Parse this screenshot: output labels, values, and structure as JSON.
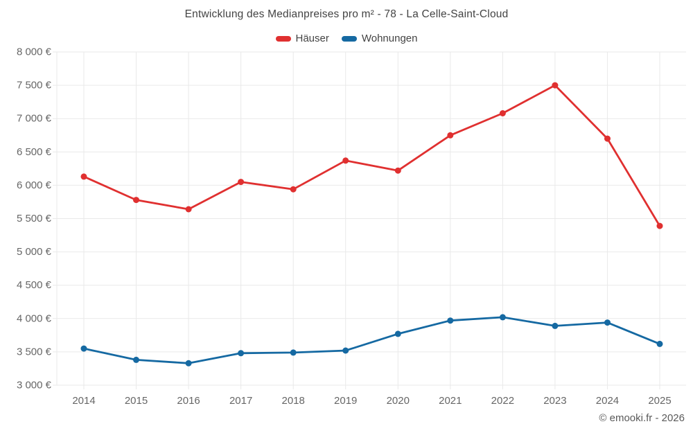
{
  "title": "Entwicklung des Medianpreises pro m² - 78 - La Celle-Saint-Cloud",
  "legend": {
    "items": [
      {
        "id": "haeuser",
        "label": "Häuser",
        "color": "#e03030"
      },
      {
        "id": "wohnungen",
        "label": "Wohnungen",
        "color": "#1569a2"
      }
    ]
  },
  "footer": {
    "credit": "© emooki.fr - 2026"
  },
  "colors": {
    "red": "#e03030",
    "blue": "#1569a2",
    "grid": "#e9e9e9",
    "axis_text": "#666666",
    "title_text": "#434343",
    "footer_text": "#595959"
  },
  "chart_data": {
    "type": "line",
    "title": "Entwicklung des Medianpreises pro m² - 78 - La Celle-Saint-Cloud",
    "xlabel": "",
    "ylabel": "",
    "x": [
      2014,
      2015,
      2016,
      2017,
      2018,
      2019,
      2020,
      2021,
      2022,
      2023,
      2024,
      2025
    ],
    "series": [
      {
        "name": "Häuser",
        "color": "#e03030",
        "values": [
          6130,
          5780,
          5640,
          6050,
          5940,
          6370,
          6220,
          6750,
          7080,
          7500,
          6700,
          5390
        ]
      },
      {
        "name": "Wohnungen",
        "color": "#1569a2",
        "values": [
          3550,
          3380,
          3330,
          3480,
          3490,
          3520,
          3770,
          3970,
          4020,
          3890,
          3940,
          3620
        ]
      }
    ],
    "ylim": [
      3000,
      8000
    ],
    "ytick_step": 500,
    "yticks": [
      {
        "value": 3000,
        "label": "3 000 €"
      },
      {
        "value": 3500,
        "label": "3 500 €"
      },
      {
        "value": 4000,
        "label": "4 000 €"
      },
      {
        "value": 4500,
        "label": "4 500 €"
      },
      {
        "value": 5000,
        "label": "5 000 €"
      },
      {
        "value": 5500,
        "label": "5 500 €"
      },
      {
        "value": 6000,
        "label": "6 000 €"
      },
      {
        "value": 6500,
        "label": "6 500 €"
      },
      {
        "value": 7000,
        "label": "7 000 €"
      },
      {
        "value": 7500,
        "label": "7 500 €"
      },
      {
        "value": 8000,
        "label": "8 000 €"
      }
    ],
    "xticks": [
      "2014",
      "2015",
      "2016",
      "2017",
      "2018",
      "2019",
      "2020",
      "2021",
      "2022",
      "2023",
      "2024",
      "2025"
    ],
    "grid": true,
    "legend_position": "top-center",
    "marker": "circle"
  }
}
